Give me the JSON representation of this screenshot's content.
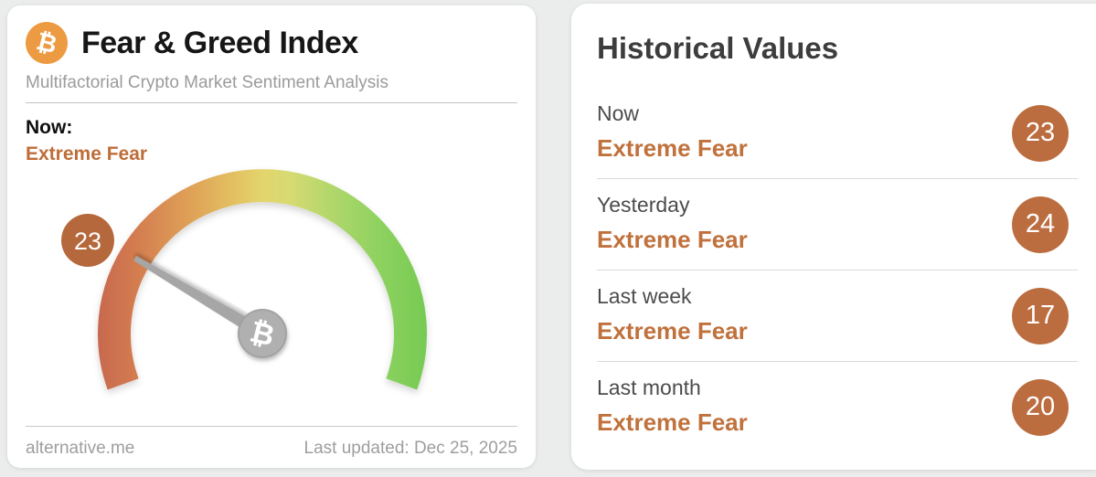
{
  "left_card": {
    "logo_icon": "bitcoin-icon",
    "currency_symbol": "₿",
    "title": "Fear & Greed Index",
    "subtitle": "Multifactorial Crypto Market Sentiment Analysis",
    "now_label": "Now:",
    "now_sentiment": "Extreme Fear",
    "footer": {
      "site": "alternative.me",
      "last_updated": "Last updated: Dec 25, 2025"
    }
  },
  "gauge": {
    "type": "gauge",
    "value": 23,
    "min": 0,
    "max": 100,
    "badge_label": "23",
    "hub_symbol": "₿",
    "start_angle_deg": 200,
    "sweep_deg": 220,
    "colors": {
      "badge": "#b5683c",
      "needle": "#a6a6a6",
      "hub": "#b0b0b0",
      "gradient": [
        "#c76950",
        "#d2794f",
        "#dd9a55",
        "#e3bd60",
        "#e3d56c",
        "#d8da72",
        "#b4d76c",
        "#8fd260",
        "#76ca53"
      ]
    }
  },
  "historical": {
    "heading": "Historical Values",
    "sentiment_color": "#c0713c",
    "badge_color": "#bc6d3f",
    "rows": [
      {
        "label": "Now",
        "sentiment": "Extreme Fear",
        "value": "23"
      },
      {
        "label": "Yesterday",
        "sentiment": "Extreme Fear",
        "value": "24"
      },
      {
        "label": "Last week",
        "sentiment": "Extreme Fear",
        "value": "17"
      },
      {
        "label": "Last month",
        "sentiment": "Extreme Fear",
        "value": "20"
      }
    ]
  }
}
